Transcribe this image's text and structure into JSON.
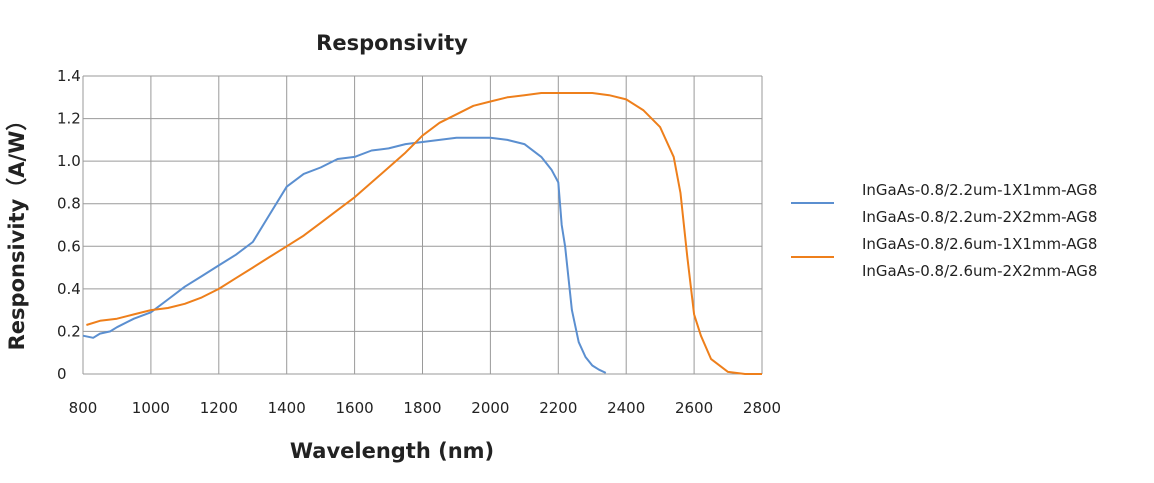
{
  "chart_data": {
    "type": "line",
    "title": "Responsivity",
    "xlabel": "Wavelength (nm)",
    "ylabel": "Responsivity（A/W）",
    "xlim": [
      800,
      2800
    ],
    "ylim": [
      0,
      1.4
    ],
    "xticks": [
      800,
      1000,
      1200,
      1400,
      1600,
      1800,
      2000,
      2200,
      2400,
      2600,
      2800
    ],
    "xtick_labels": [
      "800",
      "1000",
      "1200",
      "1400",
      "1600",
      "1800",
      "2000",
      "2200",
      "2400",
      "2600",
      "2800"
    ],
    "yticks": [
      0,
      0.2,
      0.4,
      0.6,
      0.8,
      1.0,
      1.2,
      1.4
    ],
    "ytick_labels": [
      "0",
      "0.2",
      "0.4",
      "0.6",
      "0.8",
      "1.0",
      "1.2",
      "1.4"
    ],
    "grid": true,
    "legend_position": "right",
    "series": [
      {
        "name": "InGaAs-0.8/2.2um-1X1mm-AG8\nInGaAs-0.8/2.2um-2X2mm-AG8",
        "legend_lines": [
          "InGaAs-0.8/2.2um-1X1mm-AG8",
          "InGaAs-0.8/2.2um-2X2mm-AG8"
        ],
        "color": "#5B8FD0",
        "x": [
          800,
          830,
          850,
          880,
          900,
          950,
          1000,
          1050,
          1100,
          1150,
          1200,
          1250,
          1300,
          1350,
          1400,
          1450,
          1500,
          1550,
          1600,
          1650,
          1700,
          1750,
          1800,
          1850,
          1900,
          1950,
          2000,
          2050,
          2100,
          2150,
          2180,
          2200,
          2210,
          2220,
          2240,
          2260,
          2280,
          2300,
          2320,
          2340
        ],
        "y": [
          0.18,
          0.17,
          0.19,
          0.2,
          0.22,
          0.26,
          0.29,
          0.35,
          0.41,
          0.46,
          0.51,
          0.56,
          0.62,
          0.75,
          0.88,
          0.94,
          0.97,
          1.01,
          1.02,
          1.05,
          1.06,
          1.08,
          1.09,
          1.1,
          1.11,
          1.11,
          1.11,
          1.1,
          1.08,
          1.02,
          0.96,
          0.9,
          0.7,
          0.6,
          0.3,
          0.15,
          0.08,
          0.04,
          0.02,
          0.005
        ]
      },
      {
        "name": "InGaAs-0.8/2.6um-1X1mm-AG8\nInGaAs-0.8/2.6um-2X2mm-AG8",
        "legend_lines": [
          "InGaAs-0.8/2.6um-1X1mm-AG8",
          "InGaAs-0.8/2.6um-2X2mm-AG8"
        ],
        "color": "#EE7F1B",
        "x": [
          810,
          850,
          900,
          950,
          1000,
          1050,
          1100,
          1150,
          1200,
          1250,
          1300,
          1350,
          1400,
          1450,
          1500,
          1550,
          1600,
          1650,
          1700,
          1750,
          1800,
          1850,
          1900,
          1950,
          2000,
          2050,
          2100,
          2150,
          2200,
          2250,
          2300,
          2350,
          2400,
          2450,
          2500,
          2540,
          2560,
          2580,
          2600,
          2620,
          2650,
          2700,
          2750,
          2800
        ],
        "y": [
          0.23,
          0.25,
          0.26,
          0.28,
          0.3,
          0.31,
          0.33,
          0.36,
          0.4,
          0.45,
          0.5,
          0.55,
          0.6,
          0.65,
          0.71,
          0.77,
          0.83,
          0.9,
          0.97,
          1.04,
          1.12,
          1.18,
          1.22,
          1.26,
          1.28,
          1.3,
          1.31,
          1.32,
          1.32,
          1.32,
          1.32,
          1.31,
          1.29,
          1.24,
          1.16,
          1.02,
          0.85,
          0.55,
          0.28,
          0.18,
          0.07,
          0.01,
          0.0,
          0.0
        ]
      }
    ]
  }
}
